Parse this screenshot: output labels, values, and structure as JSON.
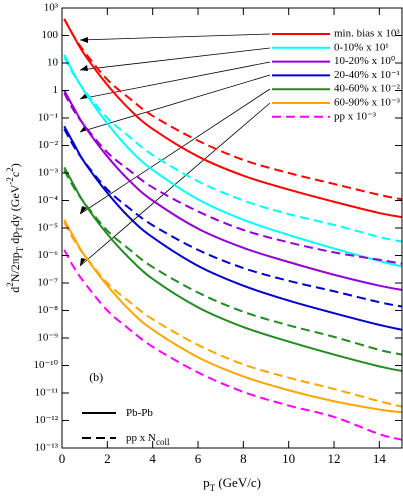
{
  "chart_data": {
    "type": "line",
    "log_y": true,
    "ylabel": [
      {
        "t": "d"
      },
      {
        "t": "2",
        "sup": true
      },
      {
        "t": "N/2πp"
      },
      {
        "t": "T",
        "sub": true
      },
      {
        "t": " dp"
      },
      {
        "t": "T",
        "sub": true
      },
      {
        "t": "dy (GeV"
      },
      {
        "t": "-2",
        "sup": true
      },
      {
        "t": "c"
      },
      {
        "t": "2",
        "sup": true
      },
      {
        "t": ")"
      }
    ],
    "xlabel": [
      {
        "t": "p"
      },
      {
        "t": "T",
        "sub": true
      },
      {
        "t": " (GeV/c)"
      }
    ],
    "annotation": "(b)",
    "xlim": [
      0,
      15
    ],
    "xticks": [
      0,
      2,
      4,
      6,
      8,
      10,
      12,
      14
    ],
    "ylim": [
      1e-13,
      1000
    ],
    "yticks": [
      {
        "value": 1e-13,
        "label": "10⁻¹³"
      },
      {
        "value": 1e-12,
        "label": "10⁻¹²"
      },
      {
        "value": 1e-11,
        "label": "10⁻¹¹"
      },
      {
        "value": 1e-10,
        "label": "10⁻¹⁰"
      },
      {
        "value": 1e-09,
        "label": "10⁻⁹"
      },
      {
        "value": 1e-08,
        "label": "10⁻⁸"
      },
      {
        "value": 1e-07,
        "label": "10⁻⁷"
      },
      {
        "value": 1e-06,
        "label": "10⁻⁶"
      },
      {
        "value": 1e-05,
        "label": "10⁻⁵"
      },
      {
        "value": 0.0001,
        "label": "10⁻⁴"
      },
      {
        "value": 0.001,
        "label": "10⁻³"
      },
      {
        "value": 0.01,
        "label": "10⁻²"
      },
      {
        "value": 0.1,
        "label": "10⁻¹"
      },
      1,
      10,
      100,
      {
        "value": 1000,
        "label": "10³"
      }
    ],
    "legend": "upper right",
    "style_legend": [
      {
        "label": "Pb-Pb",
        "dash": false
      },
      {
        "label": "pp x N",
        "sub": "coll",
        "dash": true
      }
    ],
    "x": [
      0.1,
      0.5,
      1,
      2,
      3,
      4,
      6,
      8,
      10,
      12,
      14,
      15
    ],
    "series": [
      {
        "name": "min. bias x 10³",
        "color": "#ff0000",
        "dash": false,
        "values": [
          400,
          100,
          20,
          1.6,
          0.2,
          0.04,
          0.004,
          0.0008,
          0.00025,
          9e-05,
          3.5e-05,
          2.5e-05
        ]
      },
      {
        "name": "0-10% x 10¹",
        "color": "#00ffff",
        "dash": false,
        "values": [
          20,
          4.5,
          0.9,
          0.063,
          0.007,
          0.0013,
          0.00011,
          2e-05,
          5.6e-06,
          1.8e-06,
          6.3e-07,
          4e-07
        ]
      },
      {
        "name": "10-20% x 10⁰",
        "color": "#9400d3",
        "dash": false,
        "values": [
          1,
          0.25,
          0.05,
          0.004,
          0.0005,
          0.0001,
          9.5e-06,
          1.9e-06,
          5.8e-07,
          2e-07,
          8e-08,
          5.6e-08
        ]
      },
      {
        "name": "20-40% x 10⁻¹",
        "color": "#0000cd",
        "dash": false,
        "values": [
          0.05,
          0.0126,
          0.0024,
          0.00019,
          2.3e-05,
          4.6e-06,
          4.2e-07,
          8e-08,
          2.3e-08,
          8e-09,
          3e-09,
          2e-09
        ]
      },
      {
        "name": "40-60% x 10⁻²",
        "color": "#228b22",
        "dash": false,
        "values": [
          0.0016,
          0.0004,
          7.6e-05,
          6e-06,
          7.6e-07,
          1.4e-07,
          1.3e-08,
          2.5e-09,
          7.4e-10,
          2.5e-10,
          9.3e-11,
          6.3e-11
        ]
      },
      {
        "name": "60-90% x 10⁻³",
        "color": "#ffa500",
        "dash": false,
        "values": [
          2e-05,
          5e-06,
          1e-06,
          8e-08,
          1e-08,
          2e-09,
          2e-10,
          4e-11,
          1.26e-11,
          5e-12,
          2.5e-12,
          2e-12
        ]
      },
      {
        "name": "pp x 10⁻³",
        "color": "#ff00ff",
        "dash": true,
        "values": [
          1.6e-06,
          4e-07,
          1e-07,
          1e-08,
          2e-09,
          4.8e-10,
          5.6e-11,
          1.1e-11,
          3.5e-12,
          1.35e-12,
          3.2e-13,
          2e-13
        ]
      },
      {
        "color": "#ff0000",
        "dash": true,
        "values": [
          400,
          100,
          25,
          2.5,
          0.5,
          0.12,
          0.015,
          0.003,
          0.001,
          0.0004,
          0.00016,
          0.00011
        ]
      },
      {
        "color": "#00ffff",
        "dash": true,
        "values": [
          16,
          4,
          1,
          0.1,
          0.02,
          0.0045,
          0.0005,
          0.0001,
          3.2e-05,
          1.3e-05,
          4.7e-06,
          3.2e-06
        ]
      },
      {
        "color": "#9400d3",
        "dash": true,
        "values": [
          0.8,
          0.2,
          0.052,
          0.0056,
          0.0012,
          0.0003,
          4e-05,
          8.5e-06,
          3e-06,
          1.3e-06,
          7e-07,
          5e-07
        ]
      },
      {
        "color": "#0000cd",
        "dash": true,
        "values": [
          0.04,
          0.01,
          0.0025,
          0.00025,
          5e-05,
          1.26e-05,
          1.6e-06,
          3.5e-07,
          1.2e-07,
          5e-08,
          2e-08,
          1.4e-08
        ]
      },
      {
        "color": "#228b22",
        "dash": true,
        "values": [
          0.00126,
          0.00032,
          8e-05,
          8e-06,
          1.6e-06,
          3.8e-07,
          4.5e-08,
          9e-09,
          2.9e-09,
          1.1e-09,
          3.7e-10,
          2.5e-10
        ]
      },
      {
        "color": "#ffa500",
        "dash": true,
        "values": [
          1.6e-05,
          4e-06,
          1e-06,
          1e-07,
          2e-08,
          4.8e-09,
          5.6e-10,
          1.1e-10,
          3.6e-11,
          1.4e-11,
          5e-12,
          3.2e-12
        ]
      }
    ]
  }
}
